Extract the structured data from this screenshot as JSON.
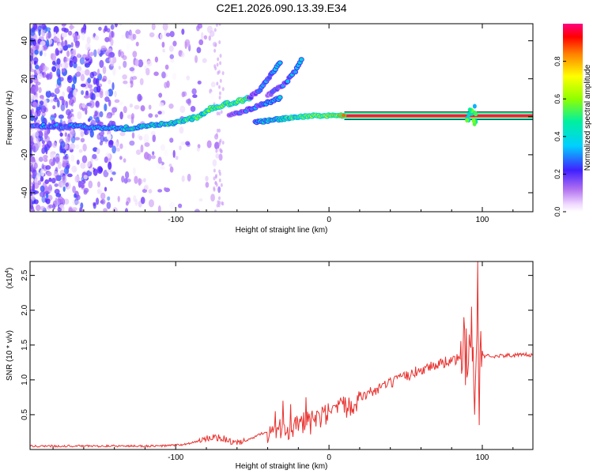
{
  "title": "C2E1.2026.090.13.39.E34",
  "chart_data": [
    {
      "type": "heatmap",
      "xlabel": "Height of straight line (km)",
      "ylabel": "Frequency (Hz)",
      "xlim": [
        -195,
        133
      ],
      "ylim": [
        -50,
        49
      ],
      "xticks": [
        -100,
        0,
        100
      ],
      "yticks": [
        -40,
        -20,
        0,
        20,
        40
      ],
      "colorbar": {
        "label": "Normalized spectral amplitude",
        "range": [
          0,
          1
        ],
        "ticks": [
          0.0,
          0.2,
          0.4,
          0.6,
          0.8
        ]
      },
      "main_band": [
        [
          -195,
          -5
        ],
        [
          -180,
          -5
        ],
        [
          -160,
          -5
        ],
        [
          -140,
          -6
        ],
        [
          -130,
          -6
        ],
        [
          -120,
          -5
        ],
        [
          -110,
          -4
        ],
        [
          -100,
          -3
        ],
        [
          -95,
          -2
        ],
        [
          -90,
          -1
        ],
        [
          -85,
          0
        ],
        [
          -80,
          3
        ],
        [
          -75,
          5
        ],
        [
          -70,
          6
        ],
        [
          -65,
          7
        ],
        [
          -60,
          8
        ],
        [
          -55,
          9
        ],
        [
          -52,
          10
        ]
      ],
      "upper_branches": [
        [
          [
            -52,
            10
          ],
          [
            -45,
            14
          ],
          [
            -40,
            20
          ],
          [
            -35,
            25
          ],
          [
            -32,
            28
          ]
        ],
        [
          [
            -40,
            11
          ],
          [
            -35,
            14
          ],
          [
            -28,
            18
          ],
          [
            -22,
            24
          ],
          [
            -18,
            30
          ]
        ],
        [
          [
            -65,
            1
          ],
          [
            -55,
            3
          ],
          [
            -45,
            6
          ],
          [
            -38,
            8
          ],
          [
            -32,
            10
          ]
        ]
      ],
      "lower_branch": [
        [
          -48,
          -3
        ],
        [
          -40,
          -2
        ],
        [
          -30,
          -1
        ],
        [
          -20,
          0
        ],
        [
          -10,
          0.5
        ],
        [
          0,
          0.5
        ],
        [
          10,
          0.5
        ]
      ],
      "carrier": {
        "freq": 0.5,
        "x_start": 10,
        "x_end": 133
      },
      "burst_x": 93
    },
    {
      "type": "line",
      "xlabel": "Height of straight line (km)",
      "ylabel": "SNR (10 * v/v)",
      "yscale_label": "(x10",
      "yscale_exp": "4",
      "xlim": [
        -195,
        133
      ],
      "ylim": [
        0,
        2.7
      ],
      "xticks": [
        -100,
        0,
        100
      ],
      "yticks": [
        0.5,
        1.0,
        1.5,
        2.0,
        2.5
      ],
      "series": [
        {
          "color": "#e8322f",
          "trend": [
            [
              -195,
              0.05
            ],
            [
              -110,
              0.05
            ],
            [
              -95,
              0.07
            ],
            [
              -85,
              0.12
            ],
            [
              -75,
              0.18
            ],
            [
              -68,
              0.15
            ],
            [
              -60,
              0.08
            ],
            [
              -52,
              0.14
            ],
            [
              -45,
              0.22
            ],
            [
              -38,
              0.28
            ],
            [
              -30,
              0.3
            ],
            [
              -20,
              0.33
            ],
            [
              -10,
              0.4
            ],
            [
              0,
              0.5
            ],
            [
              10,
              0.6
            ],
            [
              20,
              0.75
            ],
            [
              30,
              0.85
            ],
            [
              40,
              0.95
            ],
            [
              50,
              1.05
            ],
            [
              60,
              1.15
            ],
            [
              70,
              1.22
            ],
            [
              80,
              1.28
            ],
            [
              90,
              1.32
            ],
            [
              100,
              1.34
            ],
            [
              133,
              1.36
            ]
          ],
          "spikes": [
            [
              -35,
              0.55
            ],
            [
              -30,
              0.7
            ],
            [
              -25,
              0.65
            ],
            [
              -15,
              0.75
            ],
            [
              -8,
              0.55
            ],
            [
              88,
              1.9
            ],
            [
              91,
              1.25
            ],
            [
              93,
              2.05
            ],
            [
              95,
              0.5
            ],
            [
              97,
              2.7
            ],
            [
              98,
              0.35
            ],
            [
              99,
              1.7
            ]
          ]
        }
      ]
    }
  ]
}
